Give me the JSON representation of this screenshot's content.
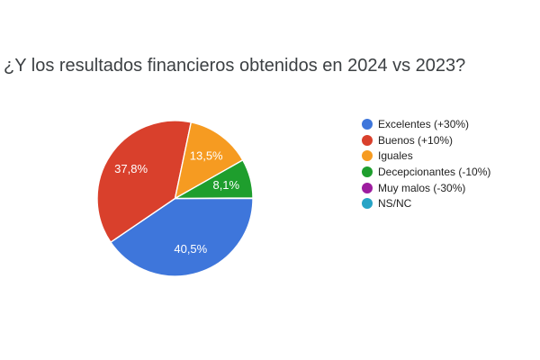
{
  "chart_data": {
    "type": "pie",
    "title": "¿Y los resultados financieros obtenidos en 2024 vs 2023?",
    "categories": [
      "Excelentes (+30%)",
      "Buenos (+10%)",
      "Iguales",
      "Decepcionantes (-10%)",
      "Muy malos (-30%)",
      "NS/NC"
    ],
    "values": [
      40.5,
      37.8,
      13.5,
      8.1,
      0,
      0
    ],
    "value_labels": [
      "40,5%",
      "37,8%",
      "13,5%",
      "8,1%",
      "",
      ""
    ],
    "colors": [
      "#3e76db",
      "#d9402c",
      "#f69b21",
      "#1e9e2d",
      "#9d1d9f",
      "#27a4c6"
    ],
    "start_angle_deg": 90,
    "legend_position": "right",
    "slice_label_color": "#ffffff",
    "title_color": "#3c4043",
    "legend_text_color": "#222222",
    "background": "#ffffff"
  }
}
